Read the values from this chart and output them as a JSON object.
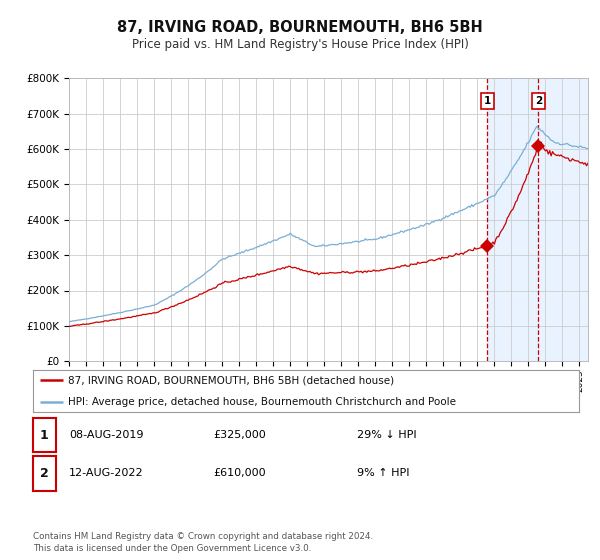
{
  "title": "87, IRVING ROAD, BOURNEMOUTH, BH6 5BH",
  "subtitle": "Price paid vs. HM Land Registry's House Price Index (HPI)",
  "background_color": "#ffffff",
  "plot_bg_color": "#ffffff",
  "grid_color": "#cccccc",
  "hpi_color": "#7bafd4",
  "price_color": "#cc0000",
  "sale1_date_num": 2019.6,
  "sale1_price": 325000,
  "sale2_date_num": 2022.6,
  "sale2_price": 610000,
  "ylim": [
    0,
    800000
  ],
  "xlim_start": 1995.0,
  "xlim_end": 2025.5,
  "legend_line1": "87, IRVING ROAD, BOURNEMOUTH, BH6 5BH (detached house)",
  "legend_line2": "HPI: Average price, detached house, Bournemouth Christchurch and Poole",
  "table_row1_num": "1",
  "table_row1_date": "08-AUG-2019",
  "table_row1_price": "£325,000",
  "table_row1_hpi": "29% ↓ HPI",
  "table_row2_num": "2",
  "table_row2_date": "12-AUG-2022",
  "table_row2_price": "£610,000",
  "table_row2_hpi": "9% ↑ HPI",
  "footnote": "Contains HM Land Registry data © Crown copyright and database right 2024.\nThis data is licensed under the Open Government Licence v3.0.",
  "highlight_color": "#ddeeff",
  "highlight_alpha": 0.65
}
